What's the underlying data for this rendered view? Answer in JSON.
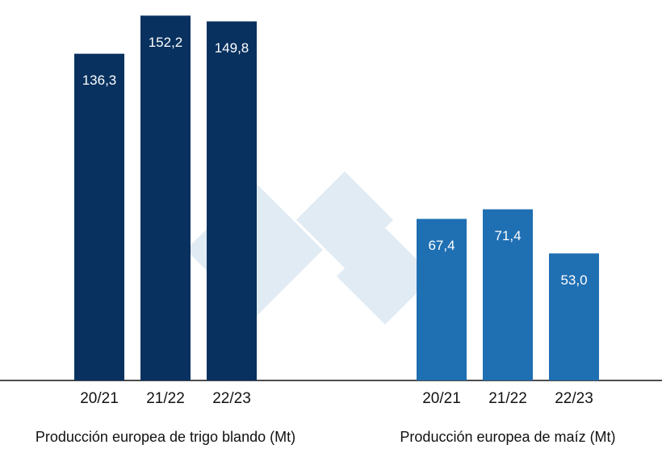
{
  "chart_data": [
    {
      "type": "bar",
      "x_label": "Producción europea de trigo blando (Mt)",
      "categories": [
        "20/21",
        "21/22",
        "22/23"
      ],
      "values": [
        136.3,
        152.2,
        149.8
      ],
      "value_labels": [
        "136,3",
        "152,2",
        "149,8"
      ],
      "color": "#08315f",
      "ylim": [
        0,
        153
      ]
    },
    {
      "type": "bar",
      "x_label": "Producción europea de maíz (Mt)",
      "categories": [
        "20/21",
        "21/22",
        "22/23"
      ],
      "values": [
        67.4,
        71.4,
        53.0
      ],
      "value_labels": [
        "67,4",
        "71,4",
        "53,0"
      ],
      "color": "#1f6fb3",
      "ylim": [
        0,
        153
      ]
    }
  ]
}
